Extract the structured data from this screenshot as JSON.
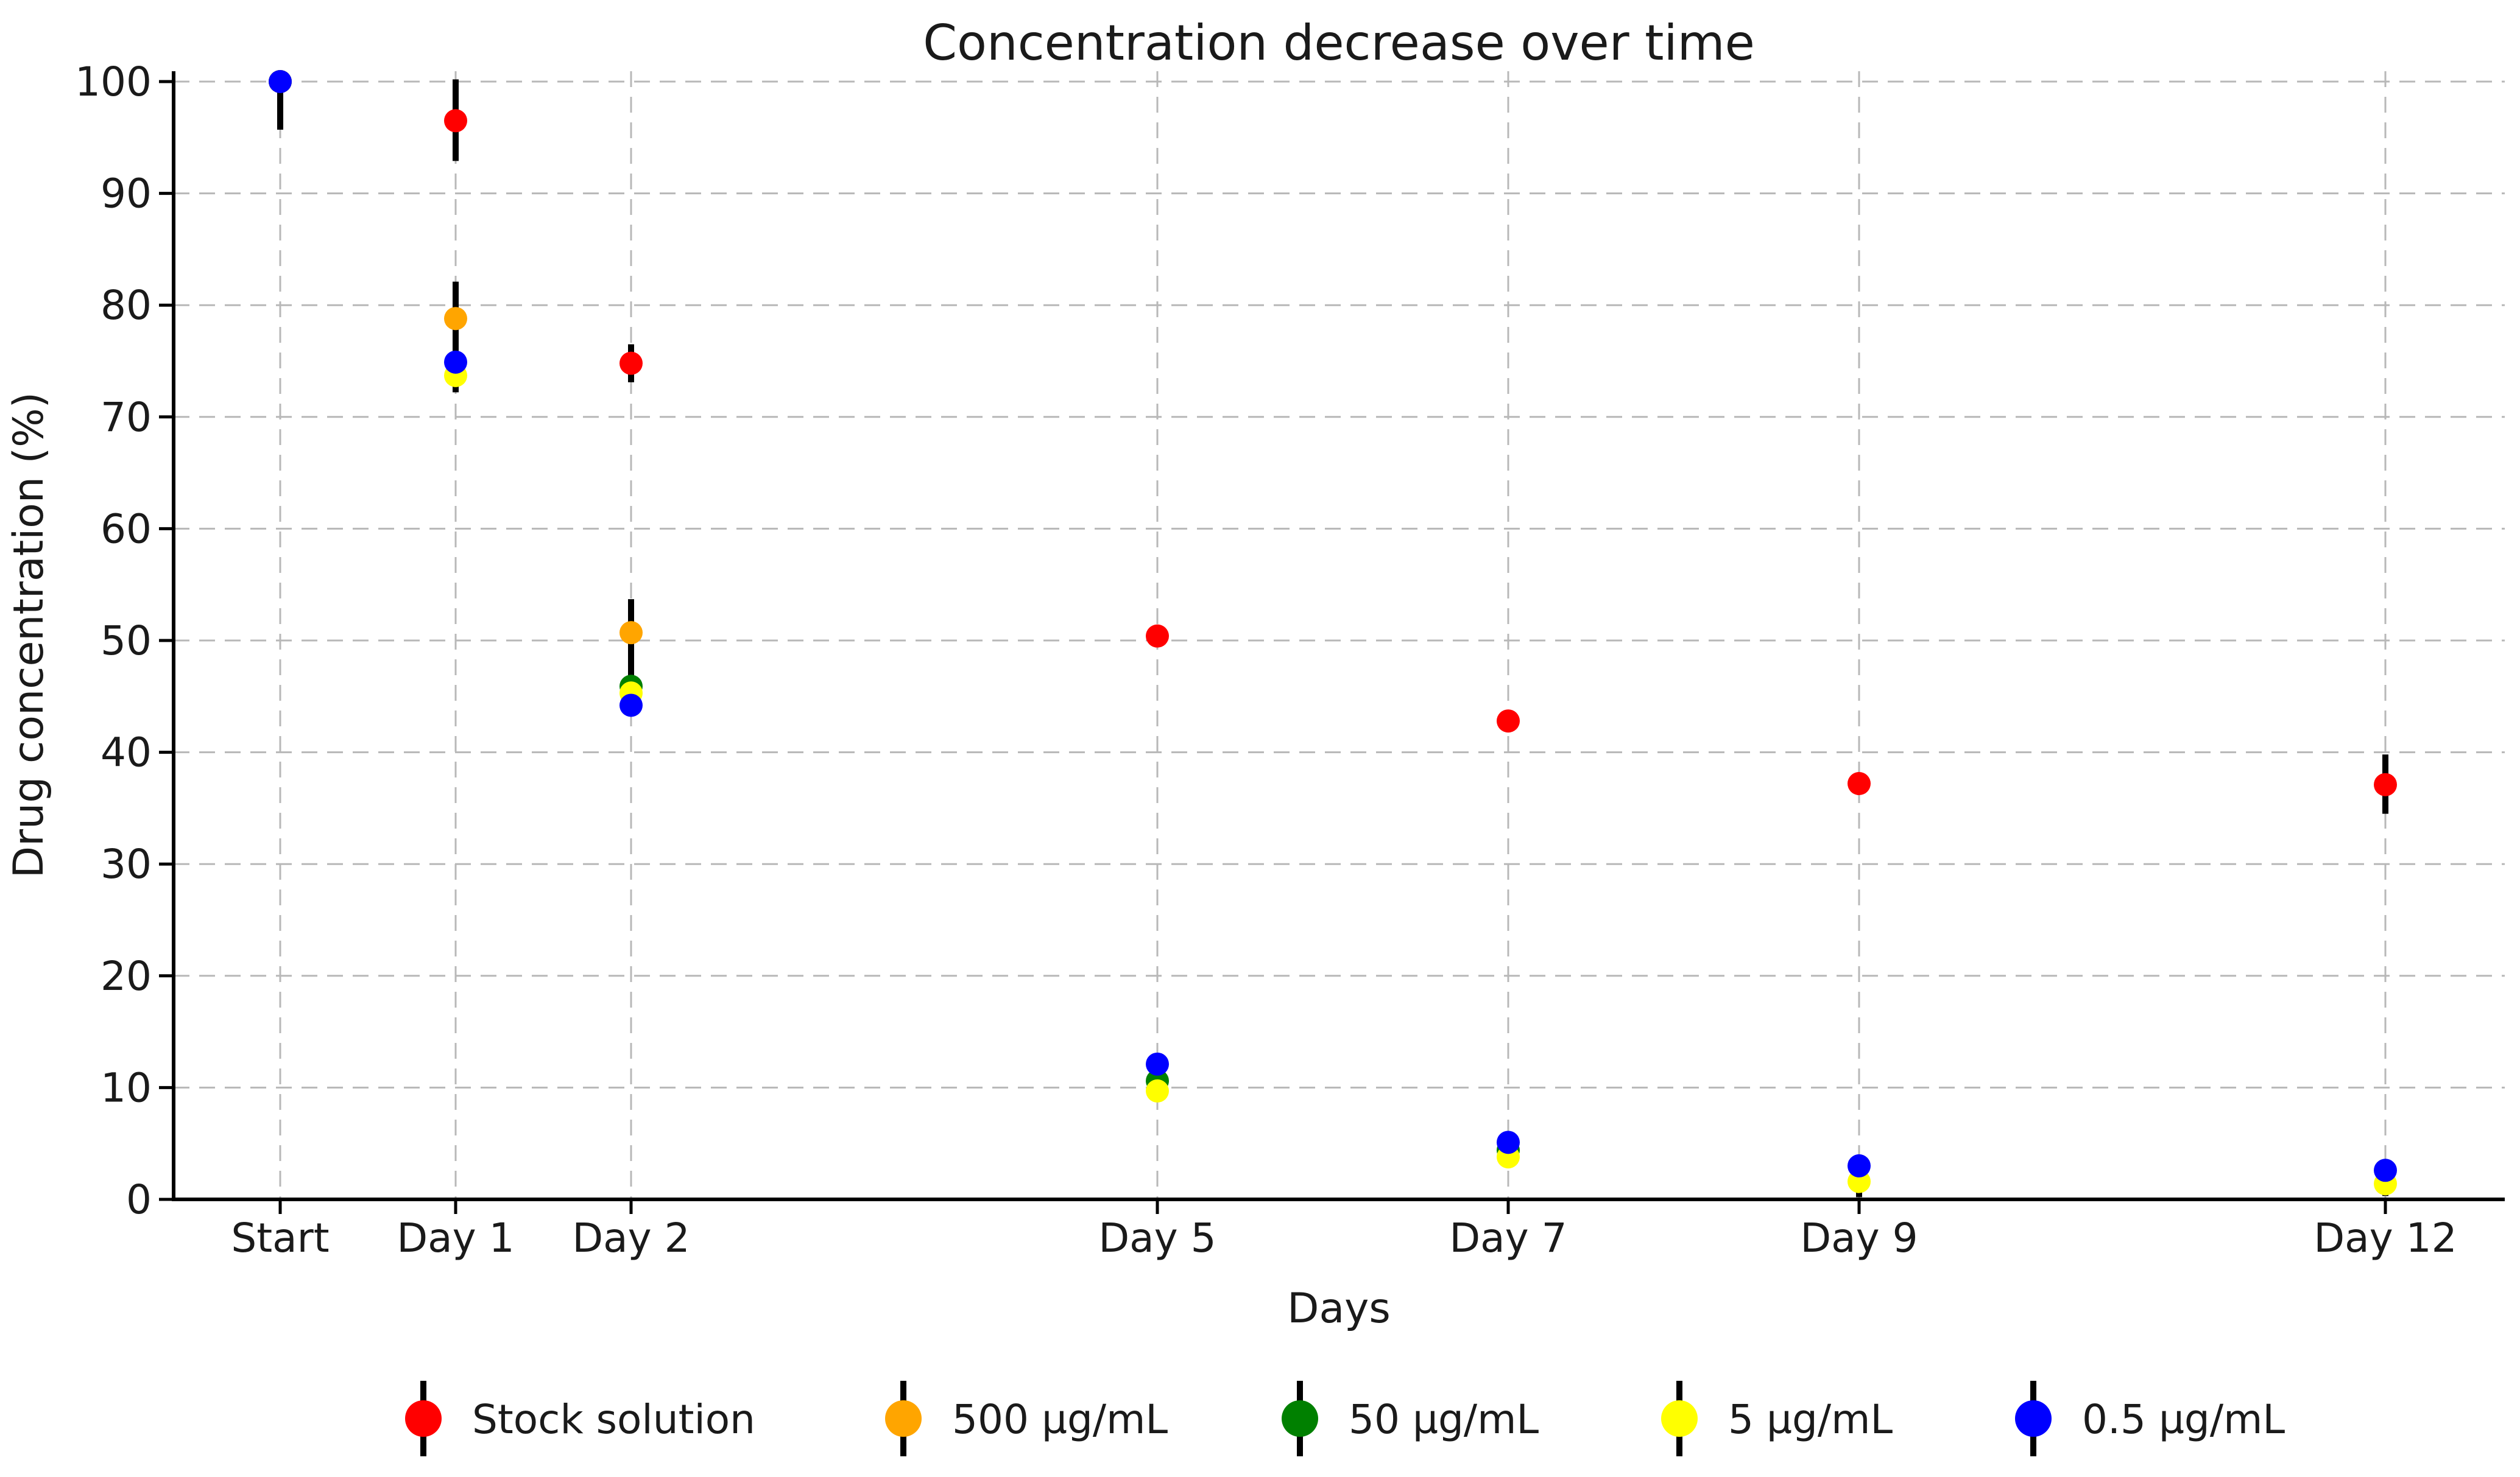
{
  "chart_data": {
    "type": "scatter",
    "title": "Concentration decrease over time",
    "xlabel": "Days",
    "ylabel": "Drug concentration (%)",
    "ylim": [
      0,
      100
    ],
    "y_ticks": [
      0,
      10,
      20,
      30,
      40,
      50,
      60,
      70,
      80,
      90,
      100
    ],
    "x_ticks": [
      {
        "day": 0,
        "label": "Start"
      },
      {
        "day": 1,
        "label": "Day 1"
      },
      {
        "day": 2,
        "label": "Day 2"
      },
      {
        "day": 5,
        "label": "Day 5"
      },
      {
        "day": 7,
        "label": "Day 7"
      },
      {
        "day": 9,
        "label": "Day 9"
      },
      {
        "day": 12,
        "label": "Day 12"
      }
    ],
    "grid": "dashed-both-axes",
    "legend_position": "bottom-horizontal",
    "marker": "circle-with-error-bars",
    "series": [
      {
        "name": "Stock solution",
        "color": "#ff0000",
        "points": [
          {
            "day": 0,
            "value": 100
          },
          {
            "day": 1,
            "value": 96.5,
            "err": [
              92.9,
              100.2
            ]
          },
          {
            "day": 2,
            "value": 74.8,
            "err": [
              73.1,
              76.5
            ]
          },
          {
            "day": 5,
            "value": 50.4
          },
          {
            "day": 7,
            "value": 42.8
          },
          {
            "day": 9,
            "value": 37.2
          },
          {
            "day": 12,
            "value": 37.1,
            "err": [
              34.5,
              39.8
            ]
          }
        ]
      },
      {
        "name": "500 µg/mL",
        "color": "#ffa500",
        "points": [
          {
            "day": 0,
            "value": 100
          },
          {
            "day": 1,
            "value": 78.8,
            "err": [
              72.3,
              82.1
            ]
          },
          {
            "day": 2,
            "value": 50.7,
            "err": [
              46.6,
              53.7
            ]
          },
          {
            "day": 5,
            "value": null
          },
          {
            "day": 7,
            "value": null
          },
          {
            "day": 9,
            "value": null
          },
          {
            "day": 12,
            "value": null
          }
        ]
      },
      {
        "name": "50 µg/mL",
        "color": "#008000",
        "points": [
          {
            "day": 0,
            "value": 100
          },
          {
            "day": 1,
            "value": null
          },
          {
            "day": 2,
            "value": 45.9
          },
          {
            "day": 5,
            "value": 10.6
          },
          {
            "day": 7,
            "value": 4.4
          },
          {
            "day": 9,
            "value": null
          },
          {
            "day": 12,
            "value": null
          }
        ]
      },
      {
        "name": "5 µg/mL",
        "color": "#ffff00",
        "points": [
          {
            "day": 0,
            "value": 100
          },
          {
            "day": 1,
            "value": 73.7,
            "err": [
              72.2,
              74.5
            ]
          },
          {
            "day": 2,
            "value": 45.3
          },
          {
            "day": 5,
            "value": 9.7
          },
          {
            "day": 7,
            "value": 3.8,
            "err": [
              3.0,
              4.4
            ]
          },
          {
            "day": 9,
            "value": 1.6,
            "err": [
              0.2,
              2.2
            ]
          },
          {
            "day": 12,
            "value": 1.4,
            "err": [
              0.3,
              2.0
            ]
          }
        ]
      },
      {
        "name": "0.5 µg/mL",
        "color": "#0000ff",
        "points": [
          {
            "day": 0,
            "value": 100,
            "err": [
              95.7,
              100.3
            ]
          },
          {
            "day": 1,
            "value": 74.9
          },
          {
            "day": 2,
            "value": 44.2
          },
          {
            "day": 5,
            "value": 12.1
          },
          {
            "day": 7,
            "value": 5.1,
            "err": [
              4.3,
              5.9
            ]
          },
          {
            "day": 9,
            "value": 3.0
          },
          {
            "day": 12,
            "value": 2.6
          }
        ]
      }
    ]
  },
  "colors": {
    "background": "#ffffff",
    "text": "#1a1a1a",
    "grid": "#b8b8b8",
    "axis": "#000000",
    "error_bar": "#000000"
  }
}
